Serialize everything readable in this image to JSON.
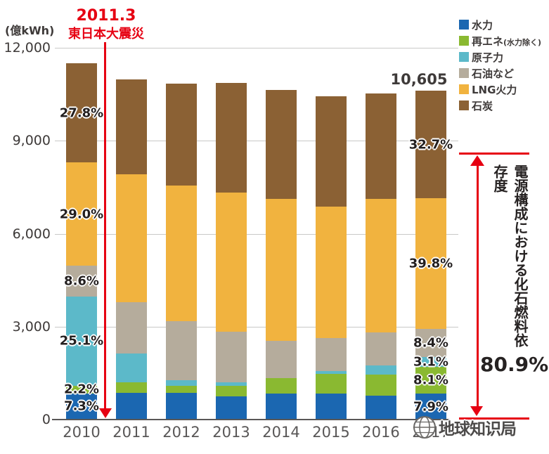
{
  "chart_data": {
    "type": "bar",
    "stacked": true,
    "unit_label": "(億kWh)",
    "categories": [
      "2010",
      "2011",
      "2012",
      "2013",
      "2014",
      "2015",
      "2016",
      "2017"
    ],
    "series": [
      {
        "name": "水力",
        "color": "#1b67b1",
        "values": [
          840,
          860,
          860,
          750,
          840,
          840,
          770,
          838
        ]
      },
      {
        "name": "再エネ(水力除く)",
        "color": "#8ab931",
        "values": [
          250,
          340,
          230,
          340,
          500,
          640,
          680,
          859
        ]
      },
      {
        "name": "原子力",
        "color": "#5cb9c9",
        "values": [
          2890,
          930,
          180,
          110,
          0,
          90,
          290,
          329
        ]
      },
      {
        "name": "石油など",
        "color": "#b5ac9c",
        "values": [
          990,
          1660,
          1910,
          1640,
          1200,
          1070,
          1070,
          891
        ]
      },
      {
        "name": "LNG火力",
        "color": "#f1b33f",
        "values": [
          3330,
          4130,
          4370,
          4490,
          4580,
          4240,
          4320,
          4221
        ]
      },
      {
        "name": "石炭",
        "color": "#8b6134",
        "values": [
          3200,
          3060,
          3290,
          3540,
          3520,
          3560,
          3400,
          3467
        ]
      }
    ],
    "ylim": [
      0,
      12000
    ],
    "yticks": [
      {
        "value": 0,
        "label": "0"
      },
      {
        "value": 3000,
        "label": "3,000"
      },
      {
        "value": 6000,
        "label": "6,000"
      },
      {
        "value": 9000,
        "label": "9,000"
      },
      {
        "value": 12000,
        "label": "12,000"
      }
    ],
    "grid": true,
    "legend_position": "top-right",
    "percent_labels": [
      {
        "category": "2010",
        "values": [
          "7.3%",
          "2.2%",
          "25.1%",
          "8.6%",
          "29.0%",
          "27.8%"
        ]
      },
      {
        "category": "2017",
        "values": [
          "7.9%",
          "8.1%",
          "3.1%",
          "8.4%",
          "39.8%",
          "32.7%"
        ]
      }
    ],
    "total_labels": [
      {
        "category": "2017",
        "label": "10,605"
      }
    ]
  },
  "annotations": {
    "earthquake": {
      "line1": "2011.3",
      "line2": "東日本大震災",
      "color": "#e60012"
    },
    "fossil_dependence": {
      "label": "電源構成における化石燃料依存度",
      "value": "80.9%",
      "color": "#e60012"
    }
  },
  "watermark": {
    "text": "地球知识局"
  }
}
